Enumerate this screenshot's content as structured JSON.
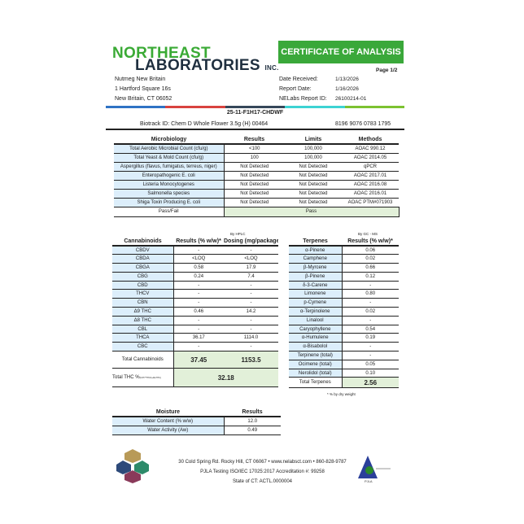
{
  "header": {
    "logo_line1": "NORTHEAST",
    "logo_line2": "LABORATORIES",
    "logo_inc": "INC.",
    "title": "CERTIFICATE OF ANALYSIS",
    "page": "Page 1/2",
    "client": [
      "Nutmeg New Britain",
      "1 Hartford Square 16s",
      "New Britain, CT 06052"
    ],
    "date_labels": [
      "Date Received:",
      "Report Date:",
      "NELabs Report ID:"
    ],
    "date_values": [
      "1/13/2026",
      "1/16/2026",
      "26100214-01"
    ],
    "color_bar": [
      "#2f73c4",
      "#d9433f",
      "#35475a",
      "#3dd3d3",
      "#7cc230"
    ],
    "sample_id": "25-11-F1H17-CHDWF",
    "biotrack_label": "Biotrack ID:",
    "biotrack_value": "Chem D Whole Flower 3.5g (H) 00464",
    "biotrack_number": "8196 9076 0783 1795"
  },
  "micro": {
    "headers": [
      "Microbiology",
      "Results",
      "Limits",
      "Methods"
    ],
    "rows": [
      [
        "Total Aerobic Microbial Count (cfu/g)",
        "<100",
        "100,000",
        "AOAC 990.12"
      ],
      [
        "Total Yeast & Mold Count (cfu/g)",
        "100",
        "100,000",
        "AOAC 2014.05"
      ],
      [
        "Aspergillus (flavus, fumigatus, terreus, niger)",
        "Not Detected",
        "Not Detected",
        "qPCR"
      ],
      [
        "Enteropathogenic E. coli",
        "Not Detected",
        "Not Detected",
        "AOAC 2017.01"
      ],
      [
        "Listeria Monocytogenes",
        "Not Detected",
        "Not Detected",
        "AOAC 2016.08"
      ],
      [
        "Salmonella species",
        "Not Detected",
        "Not Detected",
        "AOAC 2016.01"
      ],
      [
        "Shiga Toxin Producing E. coli",
        "Not Detected",
        "Not Detected",
        "AOAC PTM#071903"
      ]
    ],
    "passfail_label": "Pass/Fail",
    "passfail_value": "Pass"
  },
  "cann": {
    "method": "By HPLC",
    "headers": [
      "Cannabinoids",
      "Results (% w/w)*",
      "Dosing (mg/package)"
    ],
    "rows": [
      [
        "CBDV",
        "-",
        "-"
      ],
      [
        "CBDA",
        "<LOQ",
        "<LOQ"
      ],
      [
        "CBGA",
        "0.58",
        "17.9"
      ],
      [
        "CBG",
        "0.24",
        "7.4"
      ],
      [
        "CBD",
        "-",
        "-"
      ],
      [
        "THCV",
        "-",
        "-"
      ],
      [
        "CBN",
        "-",
        "-"
      ],
      [
        "Δ9 THC",
        "0.46",
        "14.2"
      ],
      [
        "Δ8 THC",
        "-",
        "-"
      ],
      [
        "CBL",
        "-",
        "-"
      ],
      [
        "THCA",
        "36.17",
        "1114.0"
      ],
      [
        "CBC",
        "-",
        "-"
      ]
    ],
    "total_label": "Total Cannabinoids",
    "total_result": "37.45",
    "total_dosing": "1153.5",
    "thc_label": "Total THC %",
    "thc_sub": "(0.877*THCA+Δ9-THC)",
    "thc_value": "32.18"
  },
  "terp": {
    "method": "By GC - MS",
    "headers": [
      "Terpenes",
      "Results (% w/w)*"
    ],
    "rows": [
      [
        "α-Pinene",
        "0.06"
      ],
      [
        "Camphene",
        "0.02"
      ],
      [
        "β-Myrcene",
        "0.66"
      ],
      [
        "β-Pinene",
        "0.12"
      ],
      [
        "δ-3-Carene",
        "-"
      ],
      [
        "Limonene",
        "0.80"
      ],
      [
        "p-Cymene",
        "-"
      ],
      [
        "α-Terpinolene",
        "0.02"
      ],
      [
        "Linalool",
        "-"
      ],
      [
        "Caryophyllene",
        "0.54"
      ],
      [
        "α-Humulene",
        "0.19"
      ],
      [
        "α-Bisabolol",
        "-"
      ],
      [
        "Terpinene (total)",
        "-"
      ],
      [
        "Ocimene (total)",
        "0.05"
      ],
      [
        "Nerolidol (total)",
        "0.10"
      ]
    ],
    "total_label": "Total Terpenes",
    "total_value": "2.56",
    "note": "* % by dry weight"
  },
  "moisture": {
    "headers": [
      "Moisture",
      "Results"
    ],
    "rows": [
      [
        "Water Content (% w/w)",
        "12.0"
      ],
      [
        "Water Activity (Aw)",
        "0.49"
      ]
    ]
  },
  "footer": {
    "line1": "30 Cold Spring Rd. Rocky Hill, CT 06067  •  www.nelabsct.com  •  860-828-9787",
    "line2": "PJLA Testing ISO/IEC 17025:2017 Accreditation #: 99258",
    "line3": "State of CT: ACTL.0000004",
    "pjla": "PJLA"
  }
}
